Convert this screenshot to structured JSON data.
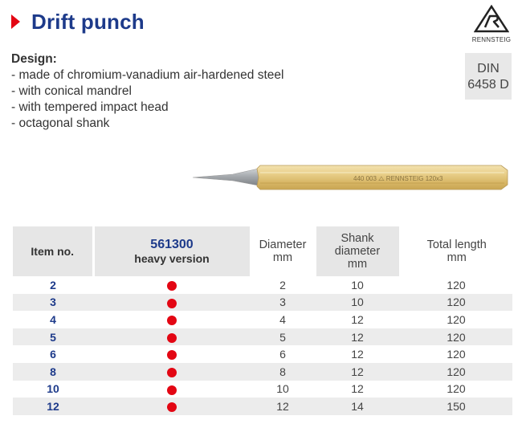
{
  "header": {
    "title": "Drift punch"
  },
  "brand": {
    "name": "RENNSTEIG"
  },
  "standard": {
    "line1": "DIN",
    "line2": "6458 D"
  },
  "design": {
    "heading": "Design:",
    "items": [
      "- made of chromium-vanadium air-hardened steel",
      "- with conical mandrel",
      "- with tempered impact head",
      "- octagonal shank"
    ]
  },
  "product_image": {
    "engraving": "440 003 ⧍ RENNSTEIG 120x3"
  },
  "table": {
    "col_item": "Item no.",
    "col_art": "561300",
    "col_art_sub": "heavy version",
    "col_diam": "Diameter",
    "col_diam_unit": "mm",
    "col_shank": "Shank diameter",
    "col_shank_unit": "mm",
    "col_len": "Total length",
    "col_len_unit": "mm",
    "rows": [
      {
        "item": "2",
        "diam": "2",
        "shank": "10",
        "len": "120"
      },
      {
        "item": "3",
        "diam": "3",
        "shank": "10",
        "len": "120"
      },
      {
        "item": "4",
        "diam": "4",
        "shank": "12",
        "len": "120"
      },
      {
        "item": "5",
        "diam": "5",
        "shank": "12",
        "len": "120"
      },
      {
        "item": "6",
        "diam": "6",
        "shank": "12",
        "len": "120"
      },
      {
        "item": "8",
        "diam": "8",
        "shank": "12",
        "len": "120"
      },
      {
        "item": "10",
        "diam": "10",
        "shank": "12",
        "len": "120"
      },
      {
        "item": "12",
        "diam": "12",
        "shank": "14",
        "len": "150"
      }
    ]
  },
  "colors": {
    "accent": "#e30613",
    "title": "#1d3a8a"
  }
}
